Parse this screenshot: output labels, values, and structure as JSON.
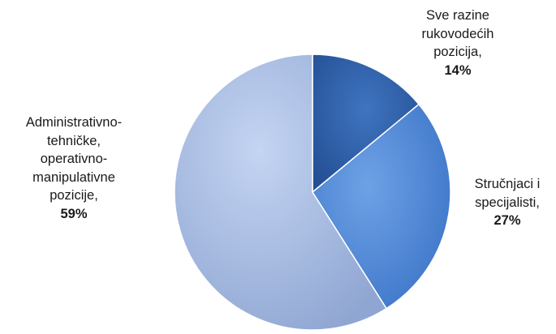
{
  "chart_data": {
    "type": "pie",
    "slices": [
      {
        "label": [
          "Sve razine",
          "rukovodećih",
          "pozicija,"
        ],
        "value": 14,
        "value_label": "14%",
        "color": "#2f63ad"
      },
      {
        "label": [
          "Stručnjaci i",
          "specijalisti,"
        ],
        "value": 27,
        "value_label": "27%",
        "color": "#4b86d6"
      },
      {
        "label": [
          "Administrativno-",
          "tehničke,",
          "operativno-",
          "manipulativne",
          "pozicije,"
        ],
        "value": 59,
        "value_label": "59%",
        "color": "#a9bde6"
      }
    ]
  }
}
